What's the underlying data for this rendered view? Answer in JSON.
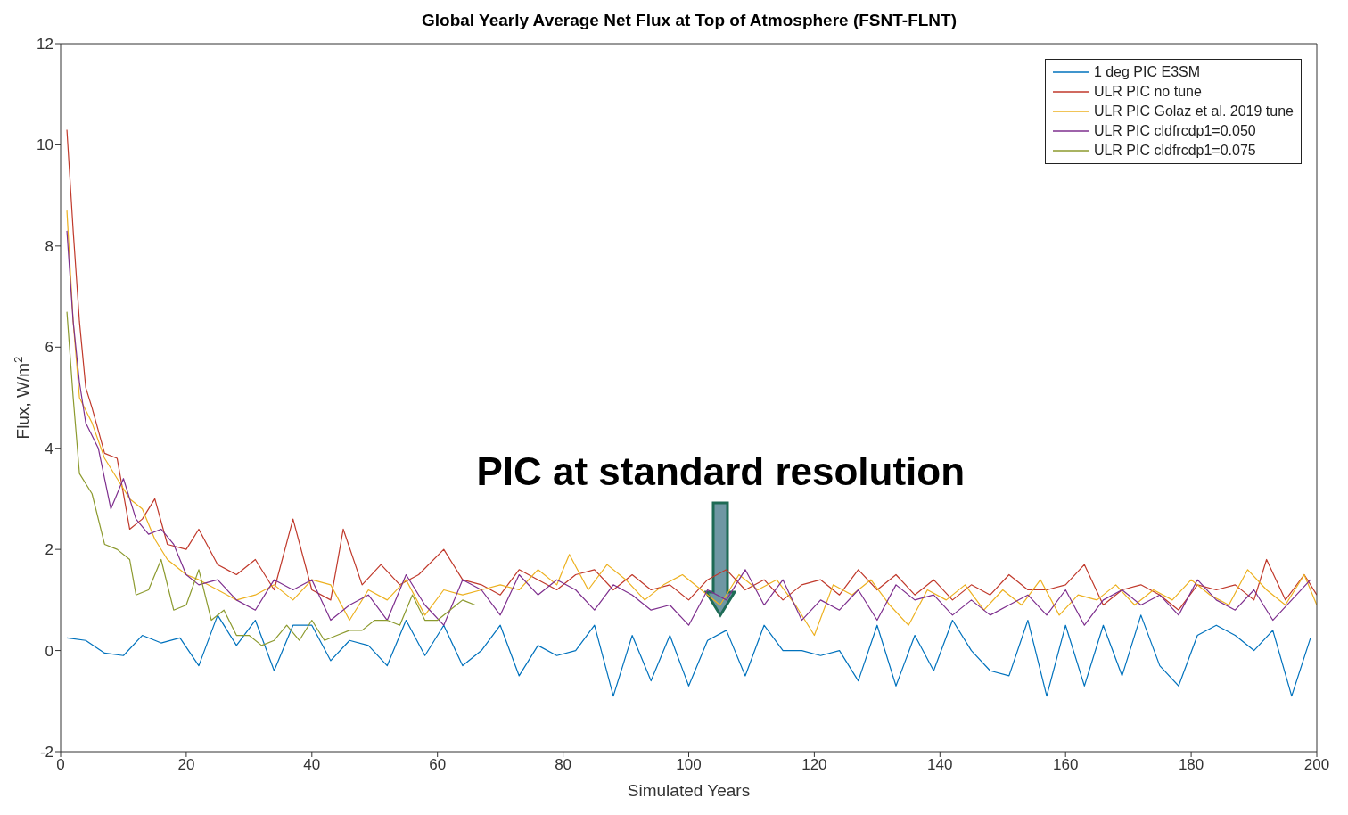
{
  "chart_data": {
    "type": "line",
    "title": "Global Yearly Average Net Flux at Top of Atmosphere (FSNT-FLNT)",
    "xlabel": "Simulated Years",
    "ylabel": "Flux, W/m$^{2}$",
    "xlim": [
      0,
      200
    ],
    "xticks": [
      0,
      20,
      40,
      60,
      80,
      100,
      120,
      140,
      160,
      180,
      200
    ],
    "ylim": [
      -2,
      12
    ],
    "yticks": [
      -2,
      0,
      2,
      4,
      6,
      8,
      10,
      12
    ],
    "grid": false,
    "legend": "top right",
    "line_style": "solid",
    "annotations": [
      "PIC at standard resolution"
    ],
    "series": [
      {
        "name": "1 deg PIC E3SM",
        "color": "#0072bd",
        "x": [
          1,
          4,
          7,
          10,
          13,
          16,
          19,
          22,
          25,
          28,
          31,
          34,
          37,
          40,
          43,
          46,
          49,
          52,
          55,
          58,
          61,
          64,
          67,
          70,
          73,
          76,
          79,
          82,
          85,
          88,
          91,
          94,
          97,
          100,
          103,
          106,
          109,
          112,
          115,
          118,
          121,
          124,
          127,
          130,
          133,
          136,
          139,
          142,
          145,
          148,
          151,
          154,
          157,
          160,
          163,
          166,
          169,
          172,
          175,
          178,
          181,
          184,
          187,
          190,
          193,
          196,
          199
        ],
        "values": [
          0.25,
          0.2,
          -0.05,
          -0.1,
          0.3,
          0.15,
          0.25,
          -0.3,
          0.7,
          0.1,
          0.6,
          -0.4,
          0.5,
          0.5,
          -0.2,
          0.2,
          0.1,
          -0.3,
          0.6,
          -0.1,
          0.5,
          -0.3,
          0.0,
          0.5,
          -0.5,
          0.1,
          -0.1,
          0.0,
          0.5,
          -0.9,
          0.3,
          -0.6,
          0.3,
          -0.7,
          0.2,
          0.4,
          -0.5,
          0.5,
          0.0,
          0.0,
          -0.1,
          0.0,
          -0.6,
          0.5,
          -0.7,
          0.3,
          -0.4,
          0.6,
          0.0,
          -0.4,
          -0.5,
          0.6,
          -0.9,
          0.5,
          -0.7,
          0.5,
          -0.5,
          0.7,
          -0.3,
          -0.7,
          0.3,
          0.5,
          0.3,
          0.0,
          0.4,
          -0.9,
          0.25
        ]
      },
      {
        "name": "ULR PIC no tune",
        "color": "#c0392b",
        "x": [
          1,
          2,
          3,
          4,
          5,
          7,
          9,
          11,
          13,
          15,
          17,
          20,
          22,
          25,
          28,
          31,
          34,
          37,
          40,
          43,
          45,
          48,
          51,
          54,
          57,
          61,
          64,
          67,
          70,
          73,
          76,
          79,
          82,
          85,
          88,
          91,
          94,
          97,
          100,
          103,
          106,
          109,
          112,
          115,
          118,
          121,
          124,
          127,
          130,
          133,
          136,
          139,
          142,
          145,
          148,
          151,
          154,
          157,
          160,
          163,
          166,
          169,
          172,
          175,
          178,
          181,
          184,
          187,
          190,
          192,
          195,
          198,
          200
        ],
        "values": [
          10.3,
          8.3,
          6.5,
          5.2,
          4.8,
          3.9,
          3.8,
          2.4,
          2.6,
          3.0,
          2.1,
          2.0,
          2.4,
          1.7,
          1.5,
          1.8,
          1.2,
          2.6,
          1.2,
          1.0,
          2.4,
          1.3,
          1.7,
          1.3,
          1.5,
          2.0,
          1.4,
          1.3,
          1.1,
          1.6,
          1.4,
          1.2,
          1.5,
          1.6,
          1.2,
          1.5,
          1.2,
          1.3,
          1.0,
          1.4,
          1.6,
          1.2,
          1.4,
          1.0,
          1.3,
          1.4,
          1.1,
          1.6,
          1.2,
          1.5,
          1.1,
          1.4,
          1.0,
          1.3,
          1.1,
          1.5,
          1.2,
          1.2,
          1.3,
          1.7,
          0.9,
          1.2,
          1.3,
          1.1,
          0.8,
          1.3,
          1.2,
          1.3,
          1.0,
          1.8,
          1.0,
          1.5,
          1.1
        ]
      },
      {
        "name": "ULR PIC Golaz et al. 2019 tune",
        "color": "#edb120",
        "x": [
          1,
          2,
          3,
          5,
          7,
          9,
          11,
          13,
          15,
          17,
          20,
          22,
          25,
          28,
          31,
          34,
          37,
          40,
          43,
          46,
          49,
          52,
          55,
          58,
          61,
          64,
          67,
          70,
          73,
          76,
          79,
          81,
          84,
          87,
          90,
          93,
          96,
          99,
          102,
          105,
          108,
          111,
          114,
          117,
          120,
          123,
          126,
          129,
          132,
          135,
          138,
          141,
          144,
          147,
          150,
          153,
          156,
          159,
          162,
          165,
          168,
          171,
          174,
          177,
          180,
          183,
          186,
          189,
          192,
          195,
          198,
          200
        ],
        "values": [
          8.7,
          6.5,
          5.0,
          4.5,
          3.8,
          3.4,
          3.0,
          2.8,
          2.2,
          1.8,
          1.5,
          1.4,
          1.2,
          1.0,
          1.1,
          1.3,
          1.0,
          1.4,
          1.3,
          0.6,
          1.2,
          1.0,
          1.4,
          0.7,
          1.2,
          1.1,
          1.2,
          1.3,
          1.2,
          1.6,
          1.3,
          1.9,
          1.2,
          1.7,
          1.4,
          1.0,
          1.3,
          1.5,
          1.2,
          0.9,
          1.5,
          1.2,
          1.4,
          0.9,
          0.3,
          1.3,
          1.1,
          1.4,
          0.9,
          0.5,
          1.2,
          1.0,
          1.3,
          0.8,
          1.2,
          0.9,
          1.4,
          0.7,
          1.1,
          1.0,
          1.3,
          0.9,
          1.2,
          1.0,
          1.4,
          1.1,
          0.9,
          1.6,
          1.2,
          0.9,
          1.5,
          0.9
        ]
      },
      {
        "name": "ULR PIC cldfrcdp1=0.050",
        "color": "#7e2f8e",
        "x": [
          1,
          2,
          3,
          4,
          6,
          8,
          10,
          12,
          14,
          16,
          18,
          20,
          22,
          25,
          28,
          31,
          34,
          37,
          40,
          43,
          46,
          49,
          52,
          55,
          58,
          61,
          64,
          67,
          70,
          73,
          76,
          79,
          82,
          85,
          88,
          91,
          94,
          97,
          100,
          103,
          106,
          109,
          112,
          115,
          118,
          121,
          124,
          127,
          130,
          133,
          136,
          139,
          142,
          145,
          148,
          151,
          154,
          157,
          160,
          163,
          166,
          169,
          172,
          175,
          178,
          181,
          184,
          187,
          190,
          193,
          196,
          199
        ],
        "values": [
          8.3,
          6.5,
          5.3,
          4.5,
          4.0,
          2.8,
          3.4,
          2.6,
          2.3,
          2.4,
          2.1,
          1.5,
          1.3,
          1.4,
          1.0,
          0.8,
          1.4,
          1.2,
          1.4,
          0.6,
          0.9,
          1.1,
          0.6,
          1.5,
          0.9,
          0.5,
          1.4,
          1.2,
          0.7,
          1.5,
          1.1,
          1.4,
          1.2,
          0.8,
          1.3,
          1.1,
          0.8,
          0.9,
          0.5,
          1.2,
          1.0,
          1.6,
          0.9,
          1.4,
          0.6,
          1.0,
          0.8,
          1.2,
          0.6,
          1.3,
          1.0,
          1.1,
          0.7,
          1.0,
          0.7,
          0.9,
          1.1,
          0.7,
          1.2,
          0.5,
          1.0,
          1.2,
          0.9,
          1.1,
          0.7,
          1.4,
          1.0,
          0.8,
          1.2,
          0.6,
          1.0,
          1.4
        ]
      },
      {
        "name": "ULR PIC cldfrcdp1=0.075",
        "color": "#8c9a2e",
        "x": [
          1,
          2,
          3,
          5,
          7,
          9,
          11,
          12,
          14,
          16,
          18,
          20,
          22,
          24,
          26,
          28,
          30,
          32,
          34,
          36,
          38,
          40,
          42,
          44,
          46,
          48,
          50,
          52,
          54,
          56,
          58,
          60,
          62,
          64,
          66
        ],
        "values": [
          6.7,
          5.0,
          3.5,
          3.1,
          2.1,
          2.0,
          1.8,
          1.1,
          1.2,
          1.8,
          0.8,
          0.9,
          1.6,
          0.6,
          0.8,
          0.3,
          0.3,
          0.1,
          0.2,
          0.5,
          0.2,
          0.6,
          0.2,
          0.3,
          0.4,
          0.4,
          0.6,
          0.6,
          0.5,
          1.1,
          0.6,
          0.6,
          0.8,
          1.0,
          0.9
        ]
      }
    ]
  }
}
